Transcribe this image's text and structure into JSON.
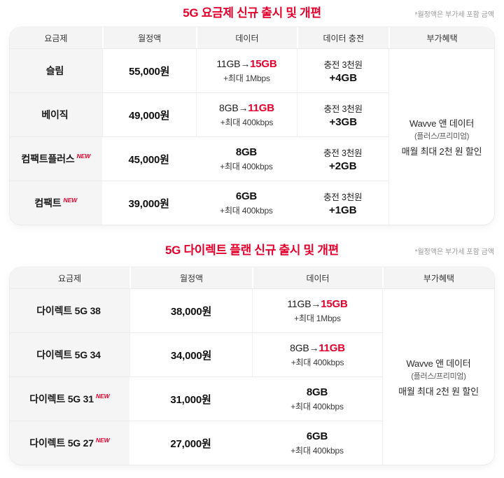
{
  "colors": {
    "accent": "#e4002c",
    "tint": "#fdf1ec",
    "header_bg": "#f4f4f5",
    "plan_col_bg": "#f5f5f6",
    "divider": "#ebebeb"
  },
  "sections": [
    {
      "title": "5G 요금제 신규 출시 및 개편",
      "vat_note": "*월정액은 부가세 포함 금액",
      "headers": [
        "요금제",
        "월정액",
        "데이터",
        "데이터 충전",
        "부가혜택"
      ],
      "benefit": {
        "line1": "Wavve 앤 데이터",
        "line2": "(플러스/프리미엄)",
        "line3": "매월 최대 2천 원 할인"
      },
      "rows": [
        {
          "plan": "슬림",
          "badge": "",
          "price": "55,000원",
          "data_pre": "11GB→",
          "data_hl": "15GB",
          "data_main": "",
          "data_sub": "+최대 1Mbps",
          "recharge_label": "충전 3천원",
          "recharge_bonus": "+4GB"
        },
        {
          "plan": "베이직",
          "badge": "",
          "price": "49,000원",
          "data_pre": "8GB→",
          "data_hl": "11GB",
          "data_main": "",
          "data_sub": "+최대 400kbps",
          "recharge_label": "충전 3천원",
          "recharge_bonus": "+3GB"
        },
        {
          "plan": "컴팩트플러스",
          "badge": "NEW",
          "price": "45,000원",
          "data_pre": "",
          "data_hl": "",
          "data_main": "8GB",
          "data_sub": "+최대 400kbps",
          "recharge_label": "충전 3천원",
          "recharge_bonus": "+2GB"
        },
        {
          "plan": "컴팩트",
          "badge": "NEW",
          "price": "39,000원",
          "data_pre": "",
          "data_hl": "",
          "data_main": "6GB",
          "data_sub": "+최대 400kbps",
          "recharge_label": "충전 3천원",
          "recharge_bonus": "+1GB"
        }
      ]
    },
    {
      "title": "5G 다이렉트 플랜 신규 출시 및 개편",
      "vat_note": "*월정액은 부가세 포함 금액",
      "headers": [
        "요금제",
        "월정액",
        "데이터",
        "부가혜택"
      ],
      "benefit": {
        "line1": "Wavve 앤 데이터",
        "line2": "(플러스/프리미엄)",
        "line3": "매월 최대 2천 원 할인"
      },
      "rows": [
        {
          "plan": "다이렉트 5G 38",
          "badge": "",
          "price": "38,000원",
          "data_pre": "11GB→",
          "data_hl": "15GB",
          "data_main": "",
          "data_sub": "+최대 1Mbps"
        },
        {
          "plan": "다이렉트 5G 34",
          "badge": "",
          "price": "34,000원",
          "data_pre": "8GB→",
          "data_hl": "11GB",
          "data_main": "",
          "data_sub": "+최대 400kbps"
        },
        {
          "plan": "다이렉트 5G 31",
          "badge": "NEW",
          "price": "31,000원",
          "data_pre": "",
          "data_hl": "",
          "data_main": "8GB",
          "data_sub": "+최대 400kbps"
        },
        {
          "plan": "다이렉트 5G 27",
          "badge": "NEW",
          "price": "27,000원",
          "data_pre": "",
          "data_hl": "",
          "data_main": "6GB",
          "data_sub": "+최대 400kbps"
        }
      ]
    }
  ],
  "chart_data": [
    {
      "type": "table",
      "title": "5G 요금제 신규 출시 및 개편",
      "note": "*월정액은 부가세 포함 금액",
      "columns": [
        "요금제",
        "월정액",
        "데이터",
        "데이터 충전",
        "부가혜택"
      ],
      "rows": [
        [
          "슬림",
          "55,000원",
          "11GB→15GB +최대 1Mbps",
          "충전 3천원 +4GB",
          "Wavve 앤 데이터 (플러스/프리미엄) 매월 최대 2천 원 할인"
        ],
        [
          "베이직",
          "49,000원",
          "8GB→11GB +최대 400kbps",
          "충전 3천원 +3GB",
          ""
        ],
        [
          "컴팩트플러스 NEW",
          "45,000원",
          "8GB +최대 400kbps",
          "충전 3천원 +2GB",
          ""
        ],
        [
          "컴팩트 NEW",
          "39,000원",
          "6GB +최대 400kbps",
          "충전 3천원 +1GB",
          ""
        ]
      ],
      "layout_hints": {
        "benefit_column_merged": true,
        "new_rows_tinted": true
      }
    },
    {
      "type": "table",
      "title": "5G 다이렉트 플랜 신규 출시 및 개편",
      "note": "*월정액은 부가세 포함 금액",
      "columns": [
        "요금제",
        "월정액",
        "데이터",
        "부가혜택"
      ],
      "rows": [
        [
          "다이렉트 5G 38",
          "38,000원",
          "11GB→15GB +최대 1Mbps",
          "Wavve 앤 데이터 (플러스/프리미엄) 매월 최대 2천 원 할인"
        ],
        [
          "다이렉트 5G 34",
          "34,000원",
          "8GB→11GB +최대 400kbps",
          ""
        ],
        [
          "다이렉트 5G 31 NEW",
          "31,000원",
          "8GB +최대 400kbps",
          ""
        ],
        [
          "다이렉트 5G 27 NEW",
          "27,000원",
          "6GB +최대 400kbps",
          ""
        ]
      ],
      "layout_hints": {
        "benefit_column_merged": true,
        "new_rows_tinted": true
      }
    }
  ]
}
